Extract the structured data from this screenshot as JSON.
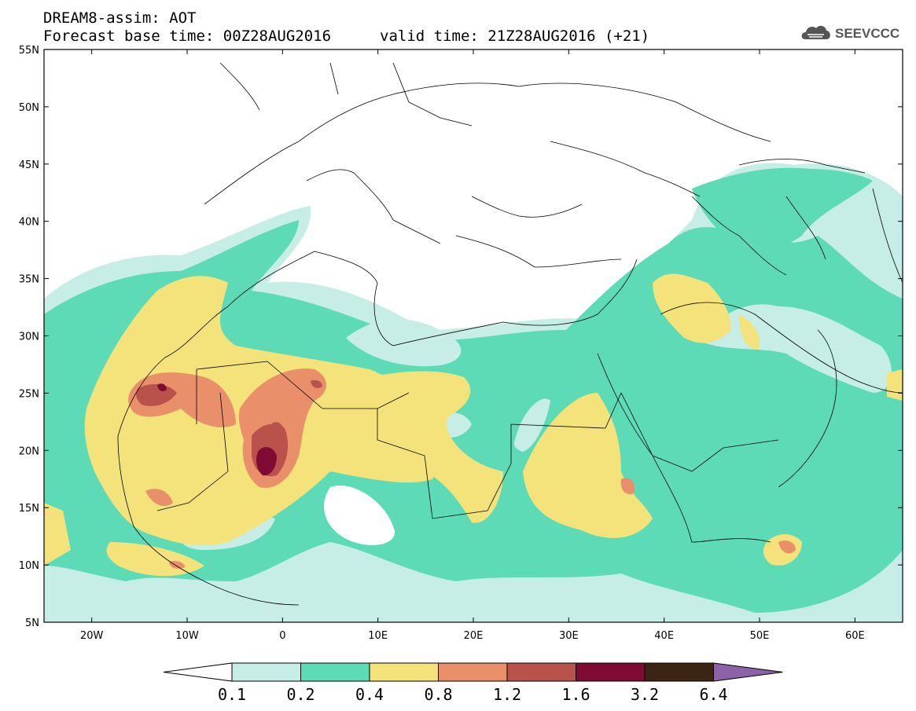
{
  "title": {
    "line1": "DREAM8-assim: AOT",
    "line2": "Forecast base time: 00Z28AUG2016",
    "valid": "valid time: 21Z28AUG2016 (+21)"
  },
  "logo": {
    "text": "SEEVCCC",
    "icon": "cloud-logo-icon"
  },
  "axes": {
    "lon_range": [
      -25,
      65
    ],
    "lat_range": [
      5,
      55
    ],
    "lat_ticks": [
      "55N",
      "50N",
      "45N",
      "40N",
      "35N",
      "30N",
      "25N",
      "20N",
      "15N",
      "10N",
      "5N"
    ],
    "lon_ticks": [
      "20W",
      "10W",
      "0",
      "10E",
      "20E",
      "30E",
      "40E",
      "50E",
      "60E"
    ]
  },
  "colorbar": {
    "labels": [
      "0.1",
      "0.2",
      "0.4",
      "0.8",
      "1.2",
      "1.6",
      "3.2",
      "6.4"
    ],
    "colors": [
      "#ffffff",
      "#c6eee6",
      "#5cdbb6",
      "#f4e27a",
      "#e9906a",
      "#b8524a",
      "#7f0a33",
      "#3b2414",
      "#8e62a9"
    ]
  },
  "colors": {
    "land_border": "#000000",
    "c01": "#c6eee6",
    "c02": "#5cdbb6",
    "c04": "#f4e27a",
    "c08": "#e9906a",
    "c12": "#b8524a",
    "c16": "#7f0a33"
  }
}
